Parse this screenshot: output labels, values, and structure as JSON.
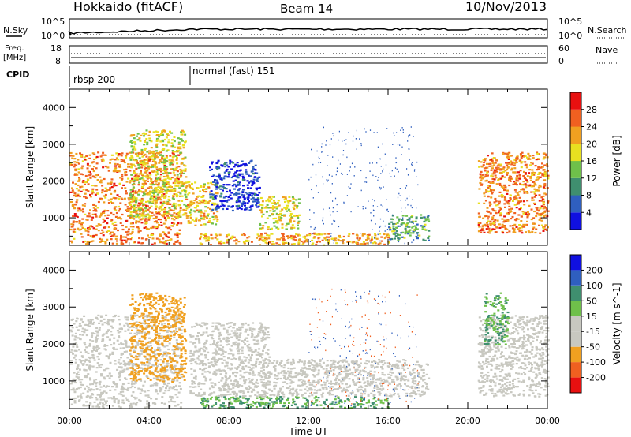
{
  "header": {
    "station": "Hokkaido (fitACF)",
    "beam": "Beam 14",
    "date": "10/Nov/2013"
  },
  "noise_panel": {
    "left_label": "N.Sky",
    "left_ticks": [
      "10^5",
      "10^0"
    ],
    "right_ticks": [
      "10^5",
      "10^0"
    ],
    "right_label": "N.Search"
  },
  "freq_panel": {
    "left_label": "Freq.",
    "left_unit": "[MHz]",
    "left_ticks": [
      "18",
      "8"
    ],
    "right_ticks": [
      "60",
      "0"
    ],
    "right_label": "Nave"
  },
  "cpid": {
    "label": "CPID",
    "modes": [
      {
        "text": "rbsp 200",
        "start_hour": 0
      },
      {
        "text": "normal (fast) 151",
        "start_hour": 6.0
      }
    ]
  },
  "axes": {
    "ylabel": "Slant Range [km]",
    "xlabel": "Time UT",
    "y_ticks": [
      "1000",
      "2000",
      "3000",
      "4000"
    ],
    "x_ticks": [
      "00:00",
      "04:00",
      "08:00",
      "12:00",
      "16:00",
      "20:00",
      "00:00"
    ],
    "ylim": [
      250,
      4500
    ],
    "xlim": [
      0,
      24
    ]
  },
  "colors": {
    "power_bar": [
      "#1010e0",
      "#2f5fbf",
      "#3f8f6f",
      "#6fc04a",
      "#e8e020",
      "#f0a020",
      "#f06020",
      "#e81010"
    ],
    "velocity_bar": [
      "#e81010",
      "#f06020",
      "#f0a020",
      "#c8c8c0",
      "#c8c8c0",
      "#6fc04a",
      "#3f8f6f",
      "#2f5fbf",
      "#1010e0"
    ]
  },
  "chart_data": [
    {
      "type": "heatmap",
      "title": "Power",
      "colorbar_label": "Power [dB]",
      "colorbar_ticks": [
        "4",
        "8",
        "12",
        "16",
        "20",
        "24",
        "28"
      ],
      "regions": [
        {
          "t0": 0.0,
          "t1": 5.6,
          "r0": 300,
          "r1": 2800,
          "level": 26
        },
        {
          "t0": 3.0,
          "t1": 5.8,
          "r0": 1000,
          "r1": 3400,
          "level": 20
        },
        {
          "t0": 5.8,
          "t1": 7.4,
          "r0": 800,
          "r1": 2000,
          "level": 22
        },
        {
          "t0": 7.0,
          "t1": 9.5,
          "r0": 1200,
          "r1": 2600,
          "level": 6
        },
        {
          "t0": 9.5,
          "t1": 11.5,
          "r0": 700,
          "r1": 1600,
          "level": 20
        },
        {
          "t0": 6.5,
          "t1": 16.0,
          "r0": 280,
          "r1": 600,
          "level": 24
        },
        {
          "t0": 16.0,
          "t1": 18.0,
          "r0": 400,
          "r1": 1100,
          "level": 14
        },
        {
          "t0": 20.5,
          "t1": 24.0,
          "r0": 600,
          "r1": 2800,
          "level": 26
        }
      ]
    },
    {
      "type": "heatmap",
      "title": "Velocity",
      "colorbar_label": "Velocity [m s^-1]",
      "colorbar_ticks": [
        "-200",
        "-100",
        "-50",
        "-15",
        "15",
        "50",
        "100",
        "200"
      ],
      "regions": [
        {
          "t0": 0.0,
          "t1": 5.6,
          "r0": 300,
          "r1": 2800,
          "level": 0
        },
        {
          "t0": 3.0,
          "t1": 5.8,
          "r0": 1000,
          "r1": 3400,
          "level": -60
        },
        {
          "t0": 6.0,
          "t1": 10.0,
          "r0": 600,
          "r1": 2600,
          "level": 0
        },
        {
          "t0": 6.5,
          "t1": 16.0,
          "r0": 280,
          "r1": 600,
          "level": 50
        },
        {
          "t0": 9.5,
          "t1": 18.0,
          "r0": 600,
          "r1": 1600,
          "level": 0
        },
        {
          "t0": 20.5,
          "t1": 24.0,
          "r0": 600,
          "r1": 2800,
          "level": 0
        },
        {
          "t0": 20.8,
          "t1": 22.0,
          "r0": 2000,
          "r1": 3400,
          "level": 50
        }
      ]
    }
  ]
}
